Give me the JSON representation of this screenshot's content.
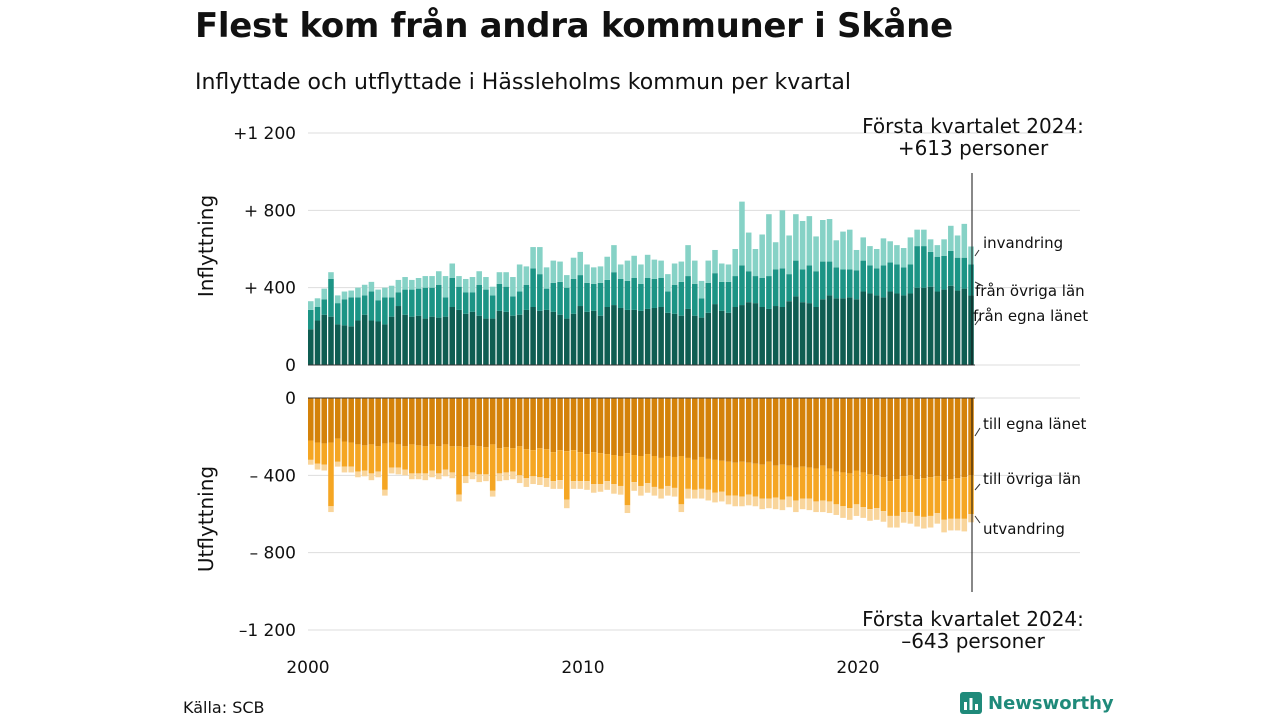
{
  "title": "Flest kom från andra kommuner i Skåne",
  "subtitle": "Inflyttade och utflyttade i Hässleholms kommun per kvartal",
  "source": "Källa: SCB",
  "brand": "Newsworthy",
  "colors": {
    "in_egna": "#0f5d52",
    "in_ovriga": "#1c9485",
    "in_invandring": "#86d2c6",
    "out_egna": "#d4820a",
    "out_ovriga": "#f5a623",
    "out_utvandring": "#f9d59b",
    "grid": "#dddddd",
    "brand": "#1f8a7a"
  },
  "chart_data": {
    "type": "bar",
    "stacked": true,
    "x_start": "2000 Q1",
    "x_end": "2024 Q1",
    "x_ticks": [
      "2000",
      "2010",
      "2020"
    ],
    "panels": {
      "top": {
        "ylabel": "Inflyttning",
        "y_ticks": [
          "+1 200",
          "+ 800",
          "+ 400",
          "0"
        ],
        "ylim": [
          0,
          1200
        ],
        "annotation": [
          "Första kvartalet 2024:",
          "+613 personer"
        ],
        "series_labels": [
          "invandring",
          "från övriga län",
          "från egna länet"
        ]
      },
      "bottom": {
        "ylabel": "Utflyttning",
        "y_ticks": [
          "0",
          "– 400",
          "– 800",
          "–1 200"
        ],
        "ylim": [
          -1200,
          0
        ],
        "annotation": [
          "Första kvartalet 2024:",
          "–643 personer"
        ],
        "series_labels": [
          "till egna länet",
          "till övriga län",
          "utvandring"
        ]
      }
    },
    "series": [
      {
        "name": "från egna länet",
        "panel": "top",
        "values": [
          185,
          230,
          260,
          250,
          210,
          205,
          200,
          230,
          260,
          230,
          225,
          210,
          250,
          305,
          260,
          250,
          255,
          240,
          250,
          245,
          250,
          300,
          285,
          265,
          275,
          255,
          240,
          240,
          280,
          275,
          255,
          260,
          285,
          300,
          280,
          285,
          275,
          260,
          240,
          265,
          305,
          275,
          280,
          255,
          300,
          310,
          295,
          285,
          285,
          280,
          290,
          295,
          300,
          270,
          265,
          255,
          290,
          255,
          245,
          270,
          315,
          280,
          270,
          300,
          310,
          325,
          320,
          300,
          290,
          305,
          300,
          330,
          355,
          325,
          320,
          300,
          340,
          360,
          345,
          345,
          350,
          340,
          380,
          370,
          360,
          350,
          380,
          370,
          360,
          370,
          400,
          400,
          405,
          380,
          390,
          410,
          385,
          395,
          360
        ]
      },
      {
        "name": "från övriga län",
        "panel": "top",
        "values": [
          100,
          70,
          80,
          195,
          110,
          135,
          150,
          120,
          100,
          150,
          110,
          140,
          100,
          70,
          130,
          140,
          140,
          160,
          150,
          170,
          100,
          150,
          120,
          110,
          100,
          160,
          150,
          120,
          140,
          130,
          100,
          120,
          130,
          200,
          190,
          110,
          150,
          170,
          160,
          180,
          160,
          150,
          140,
          170,
          140,
          170,
          150,
          150,
          165,
          140,
          160,
          150,
          150,
          110,
          150,
          175,
          170,
          165,
          100,
          155,
          160,
          150,
          160,
          160,
          205,
          160,
          140,
          150,
          170,
          190,
          200,
          140,
          185,
          170,
          195,
          185,
          195,
          175,
          160,
          150,
          145,
          150,
          160,
          145,
          140,
          165,
          150,
          150,
          145,
          150,
          215,
          215,
          180,
          180,
          175,
          180,
          170,
          160,
          160
        ]
      },
      {
        "name": "invandring",
        "panel": "top",
        "values": [
          45,
          45,
          55,
          35,
          40,
          40,
          35,
          50,
          55,
          50,
          55,
          50,
          60,
          65,
          65,
          50,
          55,
          60,
          60,
          70,
          110,
          75,
          55,
          70,
          80,
          70,
          65,
          45,
          60,
          75,
          100,
          140,
          95,
          110,
          140,
          110,
          115,
          105,
          65,
          110,
          120,
          95,
          85,
          85,
          120,
          140,
          75,
          105,
          115,
          100,
          120,
          100,
          90,
          90,
          110,
          105,
          160,
          120,
          90,
          115,
          120,
          95,
          90,
          140,
          330,
          200,
          140,
          225,
          320,
          140,
          300,
          200,
          240,
          250,
          255,
          180,
          215,
          220,
          140,
          195,
          205,
          105,
          120,
          100,
          100,
          140,
          110,
          100,
          100,
          140,
          85,
          85,
          65,
          60,
          85,
          130,
          115,
          175,
          93
        ]
      },
      {
        "name": "till egna länet",
        "panel": "bottom",
        "values": [
          -220,
          -230,
          -235,
          -230,
          -210,
          -225,
          -230,
          -240,
          -245,
          -240,
          -250,
          -235,
          -230,
          -240,
          -250,
          -240,
          -245,
          -250,
          -240,
          -250,
          -240,
          -250,
          -250,
          -255,
          -245,
          -250,
          -255,
          -240,
          -260,
          -255,
          -260,
          -250,
          -265,
          -270,
          -260,
          -265,
          -280,
          -270,
          -275,
          -270,
          -280,
          -290,
          -280,
          -285,
          -290,
          -295,
          -300,
          -285,
          -295,
          -300,
          -290,
          -300,
          -310,
          -300,
          -305,
          -300,
          -310,
          -320,
          -305,
          -315,
          -320,
          -325,
          -330,
          -335,
          -330,
          -335,
          -340,
          -345,
          -330,
          -350,
          -345,
          -350,
          -360,
          -355,
          -360,
          -365,
          -350,
          -365,
          -380,
          -385,
          -390,
          -375,
          -385,
          -395,
          -400,
          -410,
          -430,
          -420,
          -405,
          -400,
          -420,
          -415,
          -410,
          -405,
          -430,
          -420,
          -415,
          -410,
          -400
        ]
      },
      {
        "name": "till övriga län",
        "panel": "bottom",
        "values": [
          -100,
          -110,
          -110,
          -330,
          -120,
          -130,
          -125,
          -140,
          -130,
          -150,
          -130,
          -240,
          -130,
          -120,
          -120,
          -150,
          -145,
          -140,
          -135,
          -140,
          -130,
          -135,
          -250,
          -150,
          -140,
          -145,
          -140,
          -240,
          -130,
          -130,
          -120,
          -150,
          -150,
          -135,
          -150,
          -150,
          -150,
          -155,
          -250,
          -160,
          -150,
          -140,
          -165,
          -160,
          -140,
          -150,
          -155,
          -270,
          -140,
          -155,
          -150,
          -160,
          -160,
          -155,
          -160,
          -250,
          -160,
          -155,
          -165,
          -160,
          -170,
          -160,
          -175,
          -170,
          -180,
          -165,
          -170,
          -175,
          -190,
          -165,
          -180,
          -160,
          -170,
          -165,
          -160,
          -170,
          -180,
          -170,
          -170,
          -175,
          -180,
          -175,
          -180,
          -180,
          -170,
          -175,
          -180,
          -190,
          -185,
          -190,
          -190,
          -200,
          -200,
          -190,
          -200,
          -205,
          -210,
          -215,
          -200
        ]
      },
      {
        "name": "utvandring",
        "panel": "bottom",
        "values": [
          -25,
          -30,
          -30,
          -30,
          -25,
          -30,
          -30,
          -30,
          -30,
          -35,
          -30,
          -30,
          -30,
          -35,
          -30,
          -30,
          -30,
          -35,
          -35,
          -30,
          -35,
          -30,
          -35,
          -35,
          -35,
          -40,
          -35,
          -30,
          -40,
          -40,
          -40,
          -40,
          -45,
          -40,
          -40,
          -45,
          -40,
          -45,
          -45,
          -40,
          -40,
          -45,
          -45,
          -40,
          -45,
          -50,
          -45,
          -40,
          -45,
          -50,
          -50,
          -45,
          -50,
          -50,
          -45,
          -40,
          -50,
          -45,
          -50,
          -55,
          -50,
          -50,
          -45,
          -55,
          -50,
          -55,
          -50,
          -55,
          -50,
          -60,
          -55,
          -55,
          -60,
          -55,
          -60,
          -55,
          -60,
          -60,
          -55,
          -60,
          -60,
          -60,
          -55,
          -60,
          -60,
          -55,
          -60,
          -60,
          -55,
          -60,
          -55,
          -60,
          -60,
          -55,
          -65,
          -60,
          -60,
          -65,
          -43
        ]
      }
    ]
  }
}
